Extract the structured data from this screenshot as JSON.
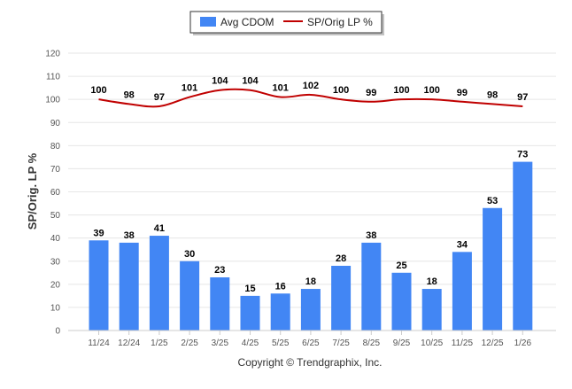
{
  "chart_data": {
    "type": "bar",
    "title": "",
    "xlabel": "",
    "ylabel": "SP/Orig. LP %",
    "ylim": [
      0,
      120
    ],
    "yticks": [
      0,
      10,
      20,
      30,
      40,
      50,
      60,
      70,
      80,
      90,
      100,
      110,
      120
    ],
    "grid": true,
    "legend_position": "top-center",
    "categories": [
      "11/24",
      "12/24",
      "1/25",
      "2/25",
      "3/25",
      "4/25",
      "5/25",
      "6/25",
      "7/25",
      "8/25",
      "9/25",
      "10/25",
      "11/25",
      "12/25",
      "1/26"
    ],
    "series": [
      {
        "name": "Avg CDOM",
        "type": "bar",
        "color": "#4286f4",
        "values": [
          39,
          38,
          41,
          30,
          23,
          15,
          16,
          18,
          28,
          38,
          25,
          18,
          34,
          53,
          73
        ]
      },
      {
        "name": "SP/Orig LP %",
        "type": "line",
        "color": "#c00000",
        "values": [
          100,
          98,
          97,
          101,
          104,
          104,
          101,
          102,
          100,
          99,
          100,
          100,
          99,
          98,
          97
        ]
      }
    ]
  },
  "footer": {
    "credit": "Copyright © Trendgraphix, Inc."
  }
}
